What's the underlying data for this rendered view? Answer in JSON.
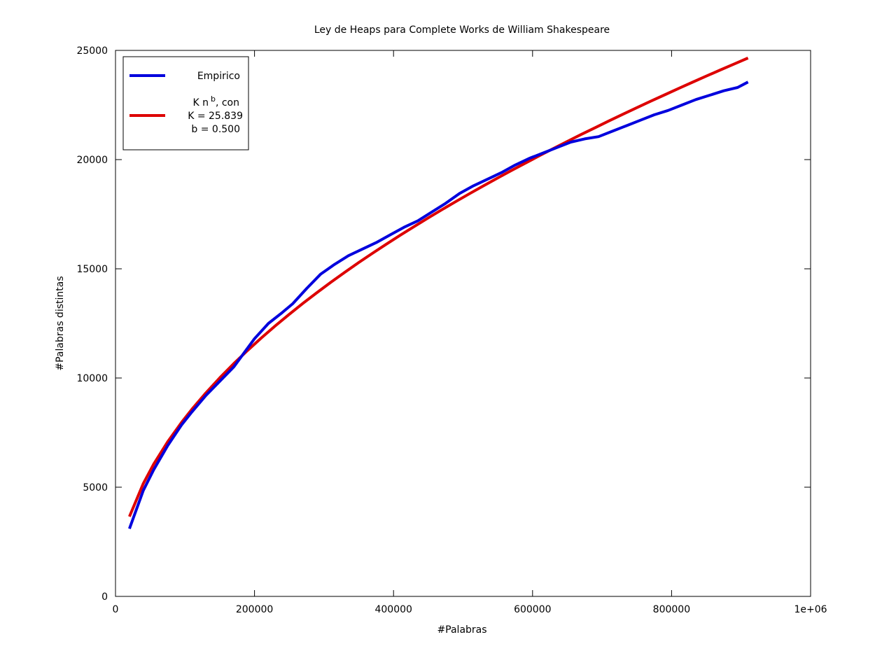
{
  "chart_data": {
    "type": "line",
    "title": "Ley de Heaps para Complete Works de William Shakespeare",
    "xlabel": "#Palabras",
    "ylabel": "#Palabras distintas",
    "xlim": [
      0,
      1000000
    ],
    "ylim": [
      0,
      25000
    ],
    "x_ticks": [
      0,
      200000,
      400000,
      600000,
      800000,
      1000000
    ],
    "x_tick_labels": [
      "0",
      "200000",
      "400000",
      "600000",
      "800000",
      "1e+06"
    ],
    "y_ticks": [
      0,
      5000,
      10000,
      15000,
      20000,
      25000
    ],
    "y_tick_labels": [
      "0",
      "5000",
      "10000",
      "15000",
      "20000",
      "25000"
    ],
    "grid": false,
    "legend_position": "top-left",
    "series": [
      {
        "name": "Empirico",
        "color": "#0000dd",
        "x": [
          20000,
          40000,
          55000,
          75000,
          95000,
          110000,
          130000,
          150000,
          170000,
          185000,
          200000,
          220000,
          240000,
          255000,
          275000,
          295000,
          315000,
          335000,
          355000,
          375000,
          395000,
          415000,
          435000,
          455000,
          475000,
          495000,
          515000,
          535000,
          555000,
          575000,
          595000,
          615000,
          635000,
          655000,
          675000,
          695000,
          715000,
          735000,
          755000,
          775000,
          795000,
          815000,
          835000,
          855000,
          875000,
          895000,
          910000
        ],
        "y": [
          3100,
          4850,
          5800,
          6900,
          7850,
          8450,
          9200,
          9850,
          10500,
          11150,
          11800,
          12500,
          13000,
          13400,
          14100,
          14750,
          15200,
          15600,
          15900,
          16200,
          16550,
          16900,
          17200,
          17600,
          18000,
          18450,
          18800,
          19100,
          19400,
          19750,
          20050,
          20300,
          20550,
          20800,
          20950,
          21050,
          21300,
          21550,
          21800,
          22050,
          22250,
          22500,
          22750,
          22950,
          23150,
          23300,
          23550
        ]
      },
      {
        "name": "K n b , con\nK = 25.839\nb = 0.500",
        "color": "#dd0000",
        "x": [
          20000,
          40000,
          55000,
          75000,
          95000,
          110000,
          130000,
          150000,
          170000,
          190000,
          210000,
          230000,
          250000,
          270000,
          290000,
          310000,
          330000,
          350000,
          370000,
          390000,
          410000,
          430000,
          450000,
          470000,
          490000,
          510000,
          530000,
          550000,
          570000,
          590000,
          610000,
          630000,
          650000,
          670000,
          690000,
          710000,
          730000,
          750000,
          770000,
          790000,
          810000,
          830000,
          850000,
          870000,
          890000,
          910000
        ],
        "y": [
          3654,
          5168,
          6060,
          7076,
          7964,
          8570,
          9316,
          10007,
          10654,
          11263,
          11841,
          12392,
          12920,
          13427,
          13915,
          14387,
          14843,
          15287,
          15717,
          16136,
          16545,
          16943,
          17333,
          17714,
          18087,
          18452,
          18811,
          19163,
          19508,
          19847,
          20181,
          20509,
          20832,
          21150,
          21463,
          21772,
          22076,
          22377,
          22673,
          22966,
          23256,
          23541,
          23823,
          24102,
          24377,
          24650
        ]
      }
    ]
  },
  "legend": {
    "empirico_label": "Empirico",
    "fit_label_prefix": "K n",
    "fit_label_exp": "b",
    "fit_label_suffix": ", con",
    "fit_k": "K = 25.839",
    "fit_b": "b = 0.500"
  }
}
